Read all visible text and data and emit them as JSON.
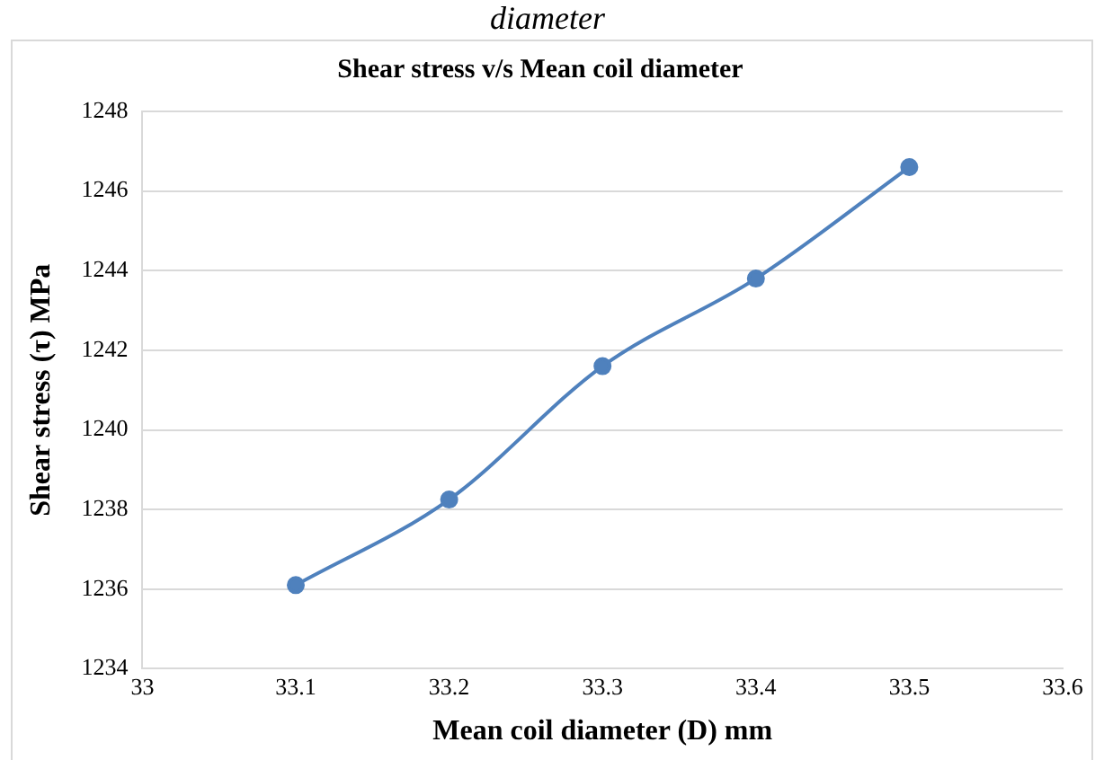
{
  "chart_data": {
    "type": "line",
    "title": "Shear stress v/s Mean coil diameter",
    "xlabel": "Mean coil diameter (D) mm",
    "ylabel": "Shear stress (τ) MPa",
    "annotations": [
      "diameter"
    ],
    "x": [
      33.1,
      33.2,
      33.3,
      33.4,
      33.5
    ],
    "series": [
      {
        "color": "#4f81bd",
        "values": [
          1236.1,
          1238.25,
          1241.6,
          1243.8,
          1246.6
        ]
      }
    ],
    "xlim": [
      33,
      33.6
    ],
    "xticks": [
      {
        "value": 33,
        "label": "33"
      },
      {
        "value": 33.1,
        "label": "33.1"
      },
      {
        "value": 33.2,
        "label": "33.2"
      },
      {
        "value": 33.3,
        "label": "33.3"
      },
      {
        "value": 33.4,
        "label": "33.4"
      },
      {
        "value": 33.5,
        "label": "33.5"
      },
      {
        "value": 33.6,
        "label": "33.6"
      }
    ],
    "ylim": [
      1234,
      1248
    ],
    "yticks": [
      1234,
      1236,
      1238,
      1240,
      1242,
      1244,
      1246,
      1248
    ],
    "grid": "y",
    "legend": false,
    "marker": "circle",
    "line_style": "solid"
  }
}
